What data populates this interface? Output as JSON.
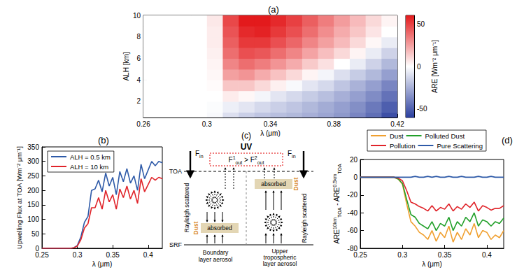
{
  "chart_data": [
    {
      "title": "(a)",
      "type": "heatmap",
      "xlabel": "λ (μm)",
      "ylabel": "ALH [km]",
      "x_bins": [
        0.26,
        0.27,
        0.28,
        0.29,
        0.3,
        0.31,
        0.32,
        0.33,
        0.34,
        0.35,
        0.36,
        0.37,
        0.38,
        0.39,
        0.4,
        0.41,
        0.42
      ],
      "y_bins": [
        0.5,
        1,
        2,
        3,
        4,
        5,
        6,
        7,
        8,
        9,
        10
      ],
      "cells": [
        [
          0,
          0,
          0,
          0,
          -2,
          -10,
          -15,
          -18,
          -20,
          -22,
          -25,
          -28,
          -32,
          -38,
          -45,
          -55
        ],
        [
          0,
          0,
          0,
          0,
          -1,
          -5,
          -8,
          -12,
          -15,
          -18,
          -22,
          -26,
          -30,
          -35,
          -42,
          -50
        ],
        [
          0,
          0,
          0,
          0,
          0,
          5,
          2,
          -3,
          -8,
          -12,
          -16,
          -20,
          -25,
          -30,
          -36,
          -44
        ],
        [
          0,
          0,
          0,
          0,
          1,
          15,
          15,
          10,
          4,
          -2,
          -8,
          -12,
          -18,
          -24,
          -30,
          -38
        ],
        [
          0,
          0,
          0,
          0,
          2,
          25,
          28,
          22,
          16,
          10,
          3,
          -3,
          -10,
          -16,
          -22,
          -30
        ],
        [
          0,
          0,
          0,
          0,
          3,
          32,
          38,
          34,
          28,
          22,
          14,
          8,
          0,
          -6,
          -14,
          -22
        ],
        [
          0,
          0,
          0,
          0,
          4,
          38,
          46,
          44,
          38,
          32,
          24,
          17,
          10,
          3,
          -6,
          -14
        ],
        [
          0,
          0,
          0,
          0,
          5,
          42,
          52,
          52,
          46,
          40,
          32,
          25,
          18,
          10,
          2,
          -6
        ],
        [
          0,
          0,
          0,
          0,
          5,
          45,
          56,
          58,
          52,
          46,
          38,
          30,
          22,
          15,
          7,
          0
        ],
        [
          0,
          0,
          0,
          0,
          6,
          48,
          60,
          62,
          56,
          50,
          42,
          34,
          26,
          18,
          10,
          3
        ]
      ],
      "xlim": [
        0.26,
        0.42
      ],
      "xticks": [
        0.26,
        0.3,
        0.34,
        0.38,
        0.42
      ],
      "ylim": [
        0.5,
        10
      ],
      "yticks": [
        2,
        4,
        6,
        8,
        10
      ],
      "colorbar": {
        "label": "ARE [Wm⁻² μm⁻¹]",
        "range": [
          -60,
          60
        ],
        "ticks": [
          -50,
          0,
          50
        ]
      },
      "grid": false
    },
    {
      "title": "(b)",
      "type": "line",
      "xlabel": "λ (μm)",
      "ylabel": "Upwelling Flux at TOA [Wm⁻² μm⁻¹]",
      "x": [
        0.25,
        0.26,
        0.27,
        0.28,
        0.29,
        0.295,
        0.3,
        0.305,
        0.31,
        0.315,
        0.32,
        0.325,
        0.33,
        0.335,
        0.34,
        0.345,
        0.35,
        0.355,
        0.36,
        0.365,
        0.37,
        0.375,
        0.38,
        0.385,
        0.39,
        0.395,
        0.4,
        0.405,
        0.41,
        0.415,
        0.42
      ],
      "series": [
        {
          "name": "ALH = 0.5 km",
          "color": "#2e5aa8",
          "values": [
            0,
            0,
            0,
            0,
            0,
            2,
            10,
            40,
            90,
            110,
            200,
            205,
            235,
            195,
            260,
            215,
            245,
            185,
            265,
            230,
            275,
            225,
            250,
            200,
            290,
            240,
            270,
            300,
            285,
            300,
            295
          ]
        },
        {
          "name": "ALH = 10 km",
          "color": "#e0242a",
          "values": [
            0,
            0,
            0,
            0,
            0,
            2,
            8,
            30,
            70,
            85,
            140,
            140,
            175,
            135,
            200,
            160,
            185,
            135,
            205,
            175,
            215,
            170,
            200,
            155,
            240,
            195,
            220,
            245,
            235,
            245,
            240
          ]
        }
      ],
      "xlim": [
        0.25,
        0.42
      ],
      "xticks": [
        0.25,
        0.3,
        0.35,
        0.4
      ],
      "ylim": [
        0,
        350
      ],
      "yticks": [
        0,
        50,
        100,
        150,
        200,
        250,
        300,
        350
      ],
      "legend": "upper left",
      "grid": false
    },
    {
      "title": "(d)",
      "type": "line",
      "xlabel": "λ (μm)",
      "ylabel": {
        "terms": [
          {
            "symbol": "ARE",
            "sup": "10km",
            "sub": "TOA"
          },
          {
            "symbol": "ARE",
            "sup": "0.5km",
            "sub": "TOA"
          }
        ],
        "operator": "-"
      },
      "x": [
        0.25,
        0.26,
        0.27,
        0.28,
        0.29,
        0.295,
        0.3,
        0.305,
        0.31,
        0.315,
        0.32,
        0.325,
        0.33,
        0.335,
        0.34,
        0.345,
        0.35,
        0.355,
        0.36,
        0.365,
        0.37,
        0.375,
        0.38,
        0.385,
        0.39,
        0.395,
        0.4,
        0.405,
        0.41,
        0.415,
        0.42
      ],
      "series": [
        {
          "name": "Dust",
          "color": "#f0a030",
          "values": [
            0,
            0,
            0,
            0,
            0,
            -2,
            -8,
            -30,
            -50,
            -55,
            -62,
            -65,
            -70,
            -60,
            -72,
            -62,
            -68,
            -55,
            -73,
            -62,
            -70,
            -58,
            -65,
            -52,
            -68,
            -60,
            -62,
            -70,
            -65,
            -68,
            -60
          ]
        },
        {
          "name": "Polluted Dust",
          "color": "#22a02a",
          "values": [
            0,
            0,
            0,
            0,
            0,
            -2,
            -7,
            -25,
            -42,
            -45,
            -52,
            -55,
            -58,
            -50,
            -60,
            -52,
            -55,
            -45,
            -60,
            -50,
            -55,
            -45,
            -50,
            -40,
            -55,
            -48,
            -50,
            -55,
            -50,
            -52,
            -46
          ]
        },
        {
          "name": "Pollution",
          "color": "#e0242a",
          "values": [
            0,
            0,
            0,
            0,
            0,
            -1,
            -4,
            -15,
            -28,
            -30,
            -33,
            -35,
            -38,
            -32,
            -38,
            -34,
            -36,
            -30,
            -38,
            -33,
            -36,
            -30,
            -34,
            -28,
            -38,
            -32,
            -34,
            -37,
            -35,
            -35,
            -32
          ]
        },
        {
          "name": "Pure Scattering",
          "color": "#2e5aa8",
          "values": [
            0,
            0,
            0,
            0,
            0,
            0,
            0,
            0,
            0,
            1,
            0,
            0,
            1,
            0,
            1,
            0,
            0,
            1,
            0,
            0,
            1,
            0,
            0,
            0,
            1,
            0,
            0,
            1,
            0,
            0,
            0
          ]
        }
      ],
      "xlim": [
        0.25,
        0.42
      ],
      "xticks": [
        0.25,
        0.3,
        0.35,
        0.4
      ],
      "ylim": [
        -80,
        20
      ],
      "yticks": [
        -80,
        -60,
        -40,
        -20,
        0,
        20
      ],
      "legend": "top",
      "grid": false
    }
  ],
  "diagram": {
    "label": "(c)",
    "band": "UV",
    "flux_in": {
      "symbol": "F",
      "sub": "in"
    },
    "comparison": {
      "left": {
        "symbol": "F",
        "sup": "1",
        "sub": "out"
      },
      "operator": ">",
      "right": {
        "symbol": "F",
        "sup": "2",
        "sub": "out"
      }
    },
    "top_level": "TOA",
    "bottom_level": "SRF",
    "scattering": "Rayleigh scattered",
    "absorption": "absorbed",
    "aerosol": "Dust",
    "columns": [
      {
        "caption": [
          "Boundary",
          "layer aerosol"
        ]
      },
      {
        "caption": [
          "Upper",
          "tropospheric",
          "layer aerosol"
        ]
      }
    ]
  }
}
